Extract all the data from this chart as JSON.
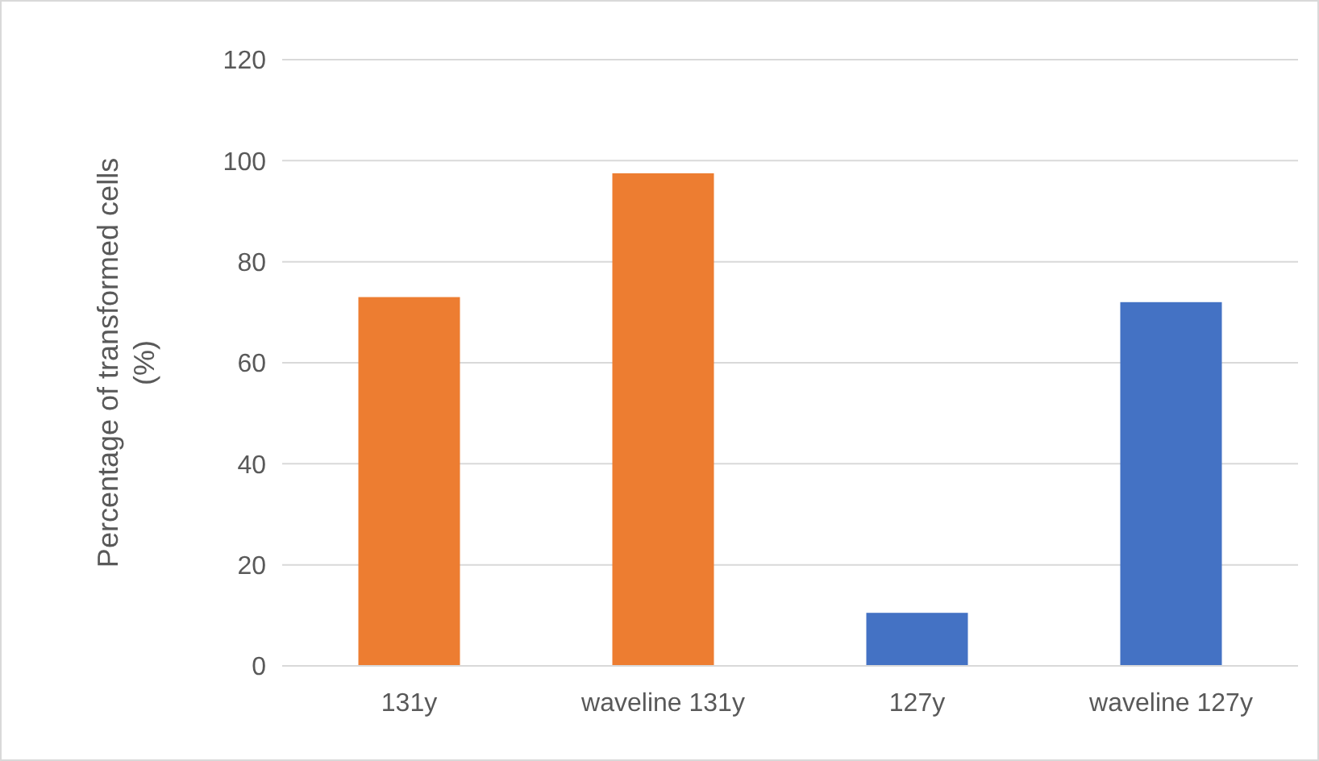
{
  "chart_data": {
    "type": "bar",
    "ylabel": "Percentage of transformed cells (%)",
    "categories": [
      "131y",
      "waveline 131y",
      "127y",
      "waveline 127y"
    ],
    "values": [
      73,
      97.5,
      10.5,
      72
    ],
    "colors": [
      "#ed7d31",
      "#ed7d31",
      "#4472c4",
      "#4472c4"
    ],
    "ylim": [
      0,
      120
    ],
    "yticks": [
      0,
      20,
      40,
      60,
      80,
      100,
      120
    ],
    "grid": "y"
  }
}
